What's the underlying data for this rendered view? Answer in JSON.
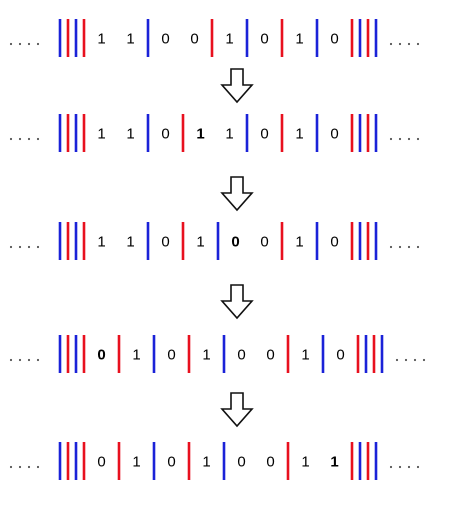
{
  "colors": {
    "red": "#e8101e",
    "blue": "#1a22d8",
    "text": "#000000",
    "dots": "#555555"
  },
  "rows": [
    {
      "tokens": [
        {
          "t": "d"
        },
        {
          "t": "b",
          "c": "blue"
        },
        {
          "t": "b",
          "c": "red"
        },
        {
          "t": "b",
          "c": "blue"
        },
        {
          "t": "b",
          "c": "red"
        },
        {
          "t": "n",
          "v": "1"
        },
        {
          "t": "n",
          "v": "1"
        },
        {
          "t": "b",
          "c": "blue"
        },
        {
          "t": "n",
          "v": "0"
        },
        {
          "t": "n",
          "v": "0"
        },
        {
          "t": "b",
          "c": "red"
        },
        {
          "t": "n",
          "v": "1"
        },
        {
          "t": "b",
          "c": "blue"
        },
        {
          "t": "n",
          "v": "0"
        },
        {
          "t": "b",
          "c": "red"
        },
        {
          "t": "n",
          "v": "1"
        },
        {
          "t": "b",
          "c": "blue"
        },
        {
          "t": "n",
          "v": "0"
        },
        {
          "t": "b",
          "c": "red"
        },
        {
          "t": "b",
          "c": "blue"
        },
        {
          "t": "b",
          "c": "red"
        },
        {
          "t": "b",
          "c": "blue"
        },
        {
          "t": "d"
        }
      ]
    },
    {
      "tokens": [
        {
          "t": "d"
        },
        {
          "t": "b",
          "c": "blue"
        },
        {
          "t": "b",
          "c": "red"
        },
        {
          "t": "b",
          "c": "blue"
        },
        {
          "t": "b",
          "c": "red"
        },
        {
          "t": "n",
          "v": "1"
        },
        {
          "t": "n",
          "v": "1"
        },
        {
          "t": "b",
          "c": "blue"
        },
        {
          "t": "n",
          "v": "0"
        },
        {
          "t": "b",
          "c": "red"
        },
        {
          "t": "n",
          "v": "1",
          "bold": true
        },
        {
          "t": "n",
          "v": "1"
        },
        {
          "t": "b",
          "c": "blue"
        },
        {
          "t": "n",
          "v": "0"
        },
        {
          "t": "b",
          "c": "red"
        },
        {
          "t": "n",
          "v": "1"
        },
        {
          "t": "b",
          "c": "blue"
        },
        {
          "t": "n",
          "v": "0"
        },
        {
          "t": "b",
          "c": "red"
        },
        {
          "t": "b",
          "c": "blue"
        },
        {
          "t": "b",
          "c": "red"
        },
        {
          "t": "b",
          "c": "blue"
        },
        {
          "t": "d"
        }
      ]
    },
    {
      "tokens": [
        {
          "t": "d"
        },
        {
          "t": "b",
          "c": "blue"
        },
        {
          "t": "b",
          "c": "red"
        },
        {
          "t": "b",
          "c": "blue"
        },
        {
          "t": "b",
          "c": "red"
        },
        {
          "t": "n",
          "v": "1"
        },
        {
          "t": "n",
          "v": "1"
        },
        {
          "t": "b",
          "c": "blue"
        },
        {
          "t": "n",
          "v": "0"
        },
        {
          "t": "b",
          "c": "red"
        },
        {
          "t": "n",
          "v": "1"
        },
        {
          "t": "b",
          "c": "blue"
        },
        {
          "t": "n",
          "v": "0",
          "bold": true
        },
        {
          "t": "n",
          "v": "0"
        },
        {
          "t": "b",
          "c": "red"
        },
        {
          "t": "n",
          "v": "1"
        },
        {
          "t": "b",
          "c": "blue"
        },
        {
          "t": "n",
          "v": "0"
        },
        {
          "t": "b",
          "c": "red"
        },
        {
          "t": "b",
          "c": "blue"
        },
        {
          "t": "b",
          "c": "red"
        },
        {
          "t": "b",
          "c": "blue"
        },
        {
          "t": "d"
        }
      ]
    },
    {
      "tokens": [
        {
          "t": "d"
        },
        {
          "t": "b",
          "c": "blue"
        },
        {
          "t": "b",
          "c": "red"
        },
        {
          "t": "b",
          "c": "blue"
        },
        {
          "t": "b",
          "c": "red"
        },
        {
          "t": "n",
          "v": "0",
          "bold": true
        },
        {
          "t": "b",
          "c": "red"
        },
        {
          "t": "n",
          "v": "1"
        },
        {
          "t": "b",
          "c": "blue"
        },
        {
          "t": "n",
          "v": "0"
        },
        {
          "t": "b",
          "c": "red"
        },
        {
          "t": "n",
          "v": "1"
        },
        {
          "t": "b",
          "c": "blue"
        },
        {
          "t": "n",
          "v": "0"
        },
        {
          "t": "n",
          "v": "0"
        },
        {
          "t": "b",
          "c": "red"
        },
        {
          "t": "n",
          "v": "1"
        },
        {
          "t": "b",
          "c": "blue"
        },
        {
          "t": "n",
          "v": "0"
        },
        {
          "t": "b",
          "c": "red"
        },
        {
          "t": "b",
          "c": "blue"
        },
        {
          "t": "b",
          "c": "red"
        },
        {
          "t": "b",
          "c": "blue"
        },
        {
          "t": "d"
        }
      ]
    },
    {
      "tokens": [
        {
          "t": "d"
        },
        {
          "t": "b",
          "c": "blue"
        },
        {
          "t": "b",
          "c": "red"
        },
        {
          "t": "b",
          "c": "blue"
        },
        {
          "t": "b",
          "c": "red"
        },
        {
          "t": "n",
          "v": "0"
        },
        {
          "t": "b",
          "c": "red"
        },
        {
          "t": "n",
          "v": "1"
        },
        {
          "t": "b",
          "c": "blue"
        },
        {
          "t": "n",
          "v": "0"
        },
        {
          "t": "b",
          "c": "red"
        },
        {
          "t": "n",
          "v": "1"
        },
        {
          "t": "b",
          "c": "blue"
        },
        {
          "t": "n",
          "v": "0"
        },
        {
          "t": "n",
          "v": "0"
        },
        {
          "t": "b",
          "c": "red"
        },
        {
          "t": "n",
          "v": "1"
        },
        {
          "t": "n",
          "v": "1",
          "bold": true
        },
        {
          "t": "b",
          "c": "red"
        },
        {
          "t": "b",
          "c": "blue"
        },
        {
          "t": "b",
          "c": "red"
        },
        {
          "t": "b",
          "c": "blue"
        },
        {
          "t": "d"
        }
      ]
    }
  ],
  "arrows": {
    "count": 4,
    "icon": "hollow-down-arrow-icon"
  }
}
